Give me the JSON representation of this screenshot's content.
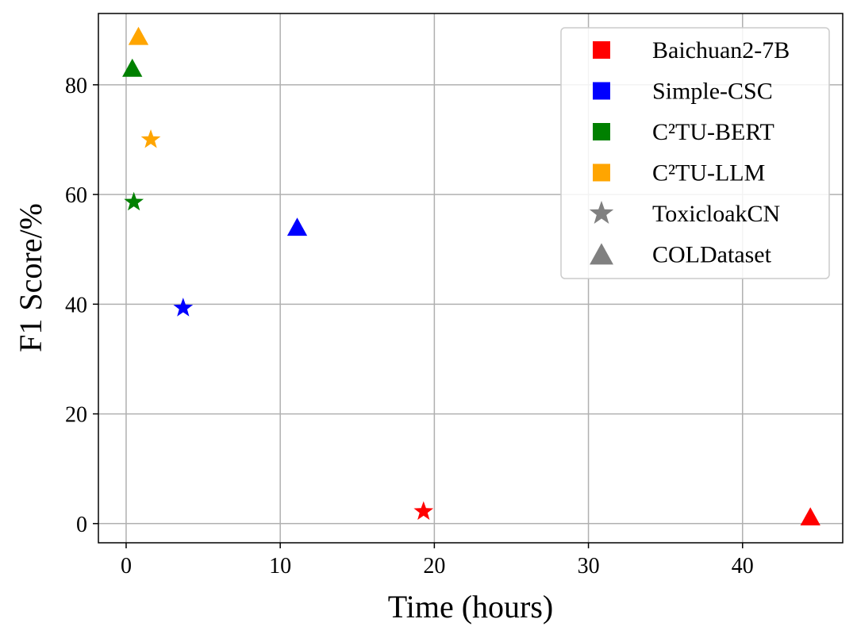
{
  "chart_data": {
    "type": "scatter",
    "title": "",
    "xlabel": "Time (hours)",
    "ylabel": "F1 Score/%",
    "xlim": [
      -1.8,
      46.5
    ],
    "ylim": [
      -3.5,
      93
    ],
    "xticks": [
      0,
      10,
      20,
      30,
      40
    ],
    "yticks": [
      0,
      20,
      40,
      60,
      80
    ],
    "grid": true,
    "legend_position": "top-right",
    "series": [
      {
        "name": "Baichuan2-7B",
        "color": "#ff0000",
        "points": [
          {
            "dataset": "ToxicloakCN",
            "x": 19.3,
            "y": 2.2
          },
          {
            "dataset": "COLDataset",
            "x": 44.4,
            "y": 1.0
          }
        ]
      },
      {
        "name": "Simple-CSC",
        "color": "#0000ff",
        "points": [
          {
            "dataset": "ToxicloakCN",
            "x": 3.7,
            "y": 39.3
          },
          {
            "dataset": "COLDataset",
            "x": 11.1,
            "y": 53.8
          }
        ]
      },
      {
        "name": "C²TU-BERT",
        "color": "#008000",
        "points": [
          {
            "dataset": "ToxicloakCN",
            "x": 0.5,
            "y": 58.6
          },
          {
            "dataset": "COLDataset",
            "x": 0.4,
            "y": 82.8
          }
        ]
      },
      {
        "name": "C²TU-LLM",
        "color": "#ffa500",
        "points": [
          {
            "dataset": "ToxicloakCN",
            "x": 1.6,
            "y": 70.0
          },
          {
            "dataset": "COLDataset",
            "x": 0.8,
            "y": 88.6
          }
        ]
      }
    ],
    "marker_legend": [
      {
        "name": "ToxicloakCN",
        "marker": "star",
        "color": "#808080"
      },
      {
        "name": "COLDataset",
        "marker": "triangle",
        "color": "#808080"
      }
    ]
  }
}
